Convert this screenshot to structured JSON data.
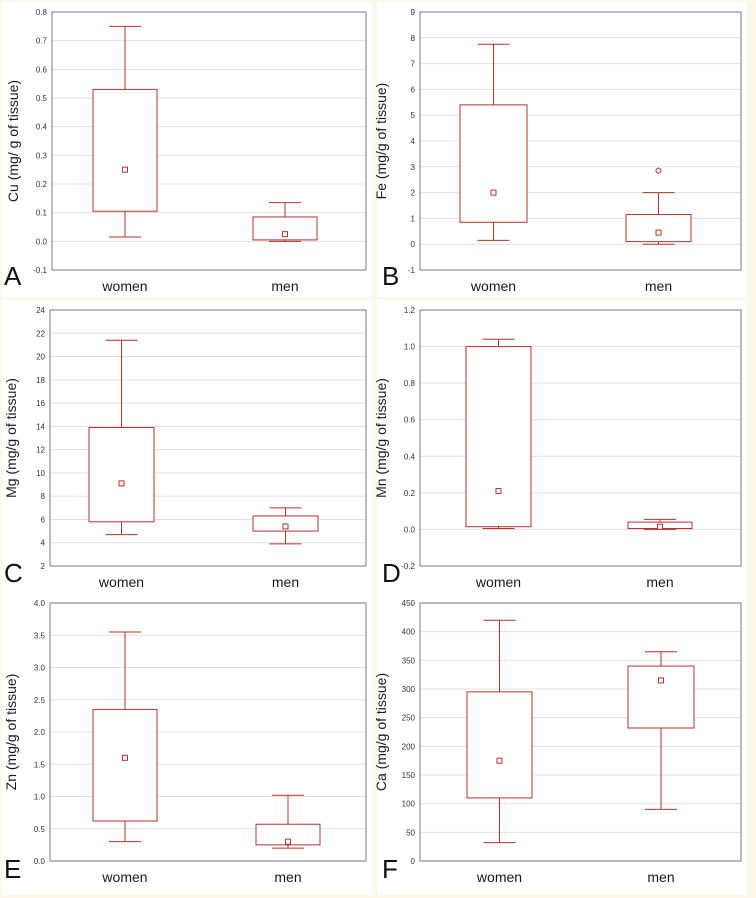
{
  "chart_data": [
    {
      "type": "box",
      "panel_letter": "A",
      "ylabel": "Cu (mg/ g of tissue)",
      "ylim": [
        -0.1,
        0.8
      ],
      "yticks": [
        "-0.1",
        "0.0",
        "0.1",
        "0.2",
        "0.3",
        "0.4",
        "0.5",
        "0.6",
        "0.7",
        "0.8"
      ],
      "categories": [
        "women",
        "men"
      ],
      "boxes": [
        {
          "whisker_low": 0.015,
          "q1": 0.105,
          "median": 0.25,
          "q3": 0.53,
          "whisker_high": 0.75,
          "outliers": []
        },
        {
          "whisker_low": 0.0,
          "q1": 0.005,
          "median": 0.025,
          "q3": 0.085,
          "whisker_high": 0.135,
          "outliers": []
        }
      ]
    },
    {
      "type": "box",
      "panel_letter": "B",
      "ylabel": "Fe (mg/g of tissue)",
      "ylim": [
        -1,
        9
      ],
      "yticks": [
        "-1",
        "0",
        "1",
        "2",
        "3",
        "4",
        "5",
        "6",
        "7",
        "8",
        "9"
      ],
      "categories": [
        "women",
        "men"
      ],
      "boxes": [
        {
          "whisker_low": 0.15,
          "q1": 0.85,
          "median": 2.0,
          "q3": 5.4,
          "whisker_high": 7.75,
          "outliers": []
        },
        {
          "whisker_low": 0.0,
          "q1": 0.1,
          "median": 0.45,
          "q3": 1.15,
          "whisker_high": 2.0,
          "outliers": [
            2.85
          ]
        }
      ]
    },
    {
      "type": "box",
      "panel_letter": "C",
      "ylabel": "Mg (mg/g of tissue)",
      "ylim": [
        2,
        24
      ],
      "yticks": [
        "2",
        "4",
        "6",
        "8",
        "10",
        "12",
        "14",
        "16",
        "18",
        "20",
        "22",
        "24"
      ],
      "categories": [
        "women",
        "men"
      ],
      "boxes": [
        {
          "whisker_low": 4.7,
          "q1": 5.8,
          "median": 9.1,
          "q3": 13.9,
          "whisker_high": 21.4,
          "outliers": []
        },
        {
          "whisker_low": 3.9,
          "q1": 5.0,
          "median": 5.4,
          "q3": 6.3,
          "whisker_high": 7.0,
          "outliers": []
        }
      ]
    },
    {
      "type": "box",
      "panel_letter": "D",
      "ylabel": "Mn (mg/g of tissue)",
      "ylim": [
        -0.2,
        1.2
      ],
      "yticks": [
        "-0.2",
        "0.0",
        "0.2",
        "0.4",
        "0.6",
        "0.8",
        "1.0",
        "1.2"
      ],
      "categories": [
        "women",
        "men"
      ],
      "boxes": [
        {
          "whisker_low": 0.005,
          "q1": 0.015,
          "median": 0.21,
          "q3": 1.0,
          "whisker_high": 1.04,
          "outliers": []
        },
        {
          "whisker_low": 0.0,
          "q1": 0.005,
          "median": 0.015,
          "q3": 0.04,
          "whisker_high": 0.055,
          "outliers": []
        }
      ]
    },
    {
      "type": "box",
      "panel_letter": "E",
      "ylabel": "Zn (mg/g of tissue)",
      "ylim": [
        0,
        4.0
      ],
      "yticks": [
        "0.0",
        "0.5",
        "1.0",
        "1.5",
        "2.0",
        "2.5",
        "3.0",
        "3.5",
        "4.0"
      ],
      "categories": [
        "women",
        "men"
      ],
      "boxes": [
        {
          "whisker_low": 0.3,
          "q1": 0.62,
          "median": 1.6,
          "q3": 2.35,
          "whisker_high": 3.55,
          "outliers": []
        },
        {
          "whisker_low": 0.2,
          "q1": 0.25,
          "median": 0.3,
          "q3": 0.57,
          "whisker_high": 1.02,
          "outliers": []
        }
      ]
    },
    {
      "type": "box",
      "panel_letter": "F",
      "ylabel": "Ca (mg/g of tissue)",
      "ylim": [
        0,
        450
      ],
      "yticks": [
        "0",
        "50",
        "100",
        "150",
        "200",
        "250",
        "300",
        "350",
        "400",
        "450"
      ],
      "categories": [
        "women",
        "men"
      ],
      "boxes": [
        {
          "whisker_low": 32,
          "q1": 110,
          "median": 175,
          "q3": 295,
          "whisker_high": 420,
          "outliers": []
        },
        {
          "whisker_low": 90,
          "q1": 232,
          "median": 315,
          "q3": 340,
          "whisker_high": 365,
          "outliers": []
        }
      ]
    }
  ]
}
